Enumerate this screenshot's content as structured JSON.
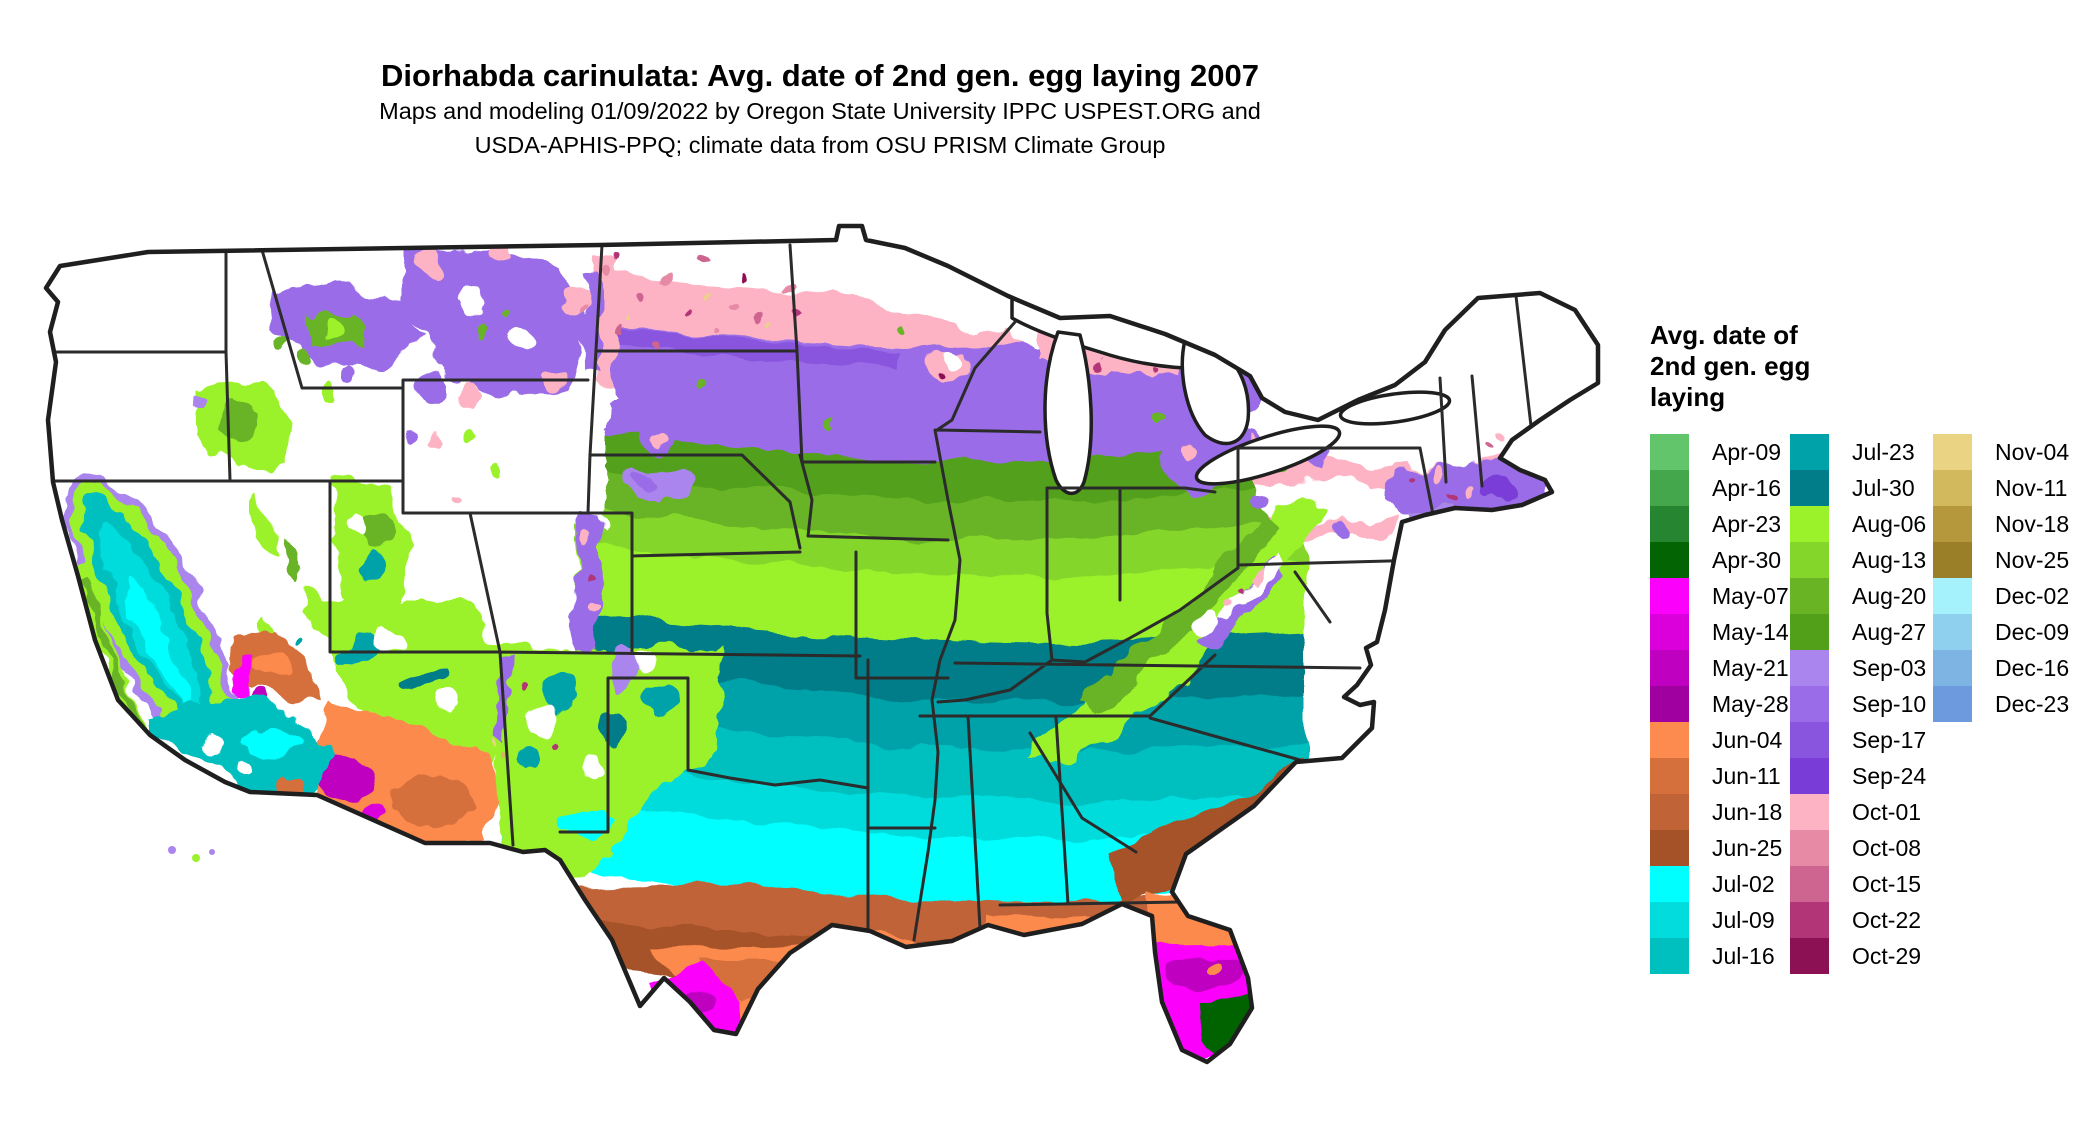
{
  "header": {
    "title": "Diorhabda carinulata: Avg. date of 2nd gen. egg laying 2007",
    "subtitle_line1": "Maps and modeling 01/09/2022 by Oregon State University IPPC USPEST.ORG and",
    "subtitle_line2": "USDA-APHIS-PPQ; climate data from OSU PRISM Climate Group"
  },
  "legend": {
    "title_line1": "Avg. date of",
    "title_line2": "2nd gen. egg",
    "title_line3": "laying",
    "columns": [
      [
        "Apr-09",
        "Apr-16",
        "Apr-23",
        "Apr-30",
        "May-07",
        "May-14",
        "May-21",
        "May-28",
        "Jun-04",
        "Jun-11",
        "Jun-18",
        "Jun-25",
        "Jul-02",
        "Jul-09",
        "Jul-16"
      ],
      [
        "Jul-23",
        "Jul-30",
        "Aug-06",
        "Aug-13",
        "Aug-20",
        "Aug-27",
        "Sep-03",
        "Sep-10",
        "Sep-17",
        "Sep-24",
        "Oct-01",
        "Oct-08",
        "Oct-15",
        "Oct-22",
        "Oct-29"
      ],
      [
        "Nov-04",
        "Nov-11",
        "Nov-18",
        "Nov-25",
        "Dec-02",
        "Dec-09",
        "Dec-16",
        "Dec-23"
      ]
    ],
    "column_left_offsets": [
      0,
      140,
      283
    ]
  },
  "colors": {
    "Apr-09": "#62c56c",
    "Apr-16": "#45a74c",
    "Apr-23": "#268530",
    "Apr-30": "#026402",
    "May-07": "#fb00fb",
    "May-14": "#db00db",
    "May-21": "#c000c0",
    "May-28": "#a000a0",
    "Jun-04": "#fd8a4e",
    "Jun-11": "#d5703d",
    "Jun-18": "#c06438",
    "Jun-25": "#a65229",
    "Jul-02": "#00ffff",
    "Jul-09": "#02dcdc",
    "Jul-16": "#00bfbf",
    "Jul-23": "#00a2aa",
    "Jul-30": "#007d88",
    "Aug-06": "#9cf22a",
    "Aug-13": "#84d62a",
    "Aug-20": "#68b425",
    "Aug-27": "#52a01a",
    "Sep-03": "#aa85ee",
    "Sep-10": "#9a6ce7",
    "Sep-17": "#8954de",
    "Sep-24": "#7a3cd7",
    "Oct-01": "#fdb3c4",
    "Oct-08": "#e68aa5",
    "Oct-15": "#cd6590",
    "Oct-22": "#b23578",
    "Oct-29": "#8c1054",
    "Nov-04": "#ead483",
    "Nov-11": "#d2b95e",
    "Nov-18": "#b5983c",
    "Nov-25": "#9a7f28",
    "Dec-02": "#a5f2fc",
    "Dec-09": "#8fd0ef",
    "Dec-16": "#7db4e3",
    "Dec-23": "#6d9ade",
    "white": "#ffffff",
    "outline": "#1f1f1f",
    "stateline": "#2b2b2b"
  },
  "map": {
    "type": "raster choropleth map of the contiguous United States",
    "no_data_color": "#ffffff",
    "observed_pattern": [
      {
        "region": "South Florida tip & Florida Keys",
        "value": "Apr-16 to Apr-30"
      },
      {
        "region": "Southern Texas tip & south Florida peninsula",
        "value": "May-07 to May-28"
      },
      {
        "region": "Gulf Coast, coastal Texas, northern Florida, desert Southwest",
        "value": "Jun-04 to Jun-25"
      },
      {
        "region": "Southern Plains & Deep South (TX, OK, AR, LA, MS, AL, GA, SC)",
        "value": "Jul-02 to Jul-16"
      },
      {
        "region": "Mid-South & mid-Atlantic coast (MO, KY, TN, VA, NC), California Central Valley",
        "value": "Jul-23 to Jul-30"
      },
      {
        "region": "Central Plains & Corn Belt (NE, KS, IA, IL, IN, OH, PA, NJ)",
        "value": "Aug-06 to Aug-27"
      },
      {
        "region": "Northern Plains & Great Lakes (E. MT, ND, SD, MN, WI, MI, s. New England)",
        "value": "Sep-03 to Sep-24"
      },
      {
        "region": "Northern fringe & mountain margins",
        "value": "Oct-01 to Oct-29"
      },
      {
        "region": "Mountain West, Cascades, Sierra, far northern tier",
        "value": "no value (white)"
      }
    ]
  }
}
